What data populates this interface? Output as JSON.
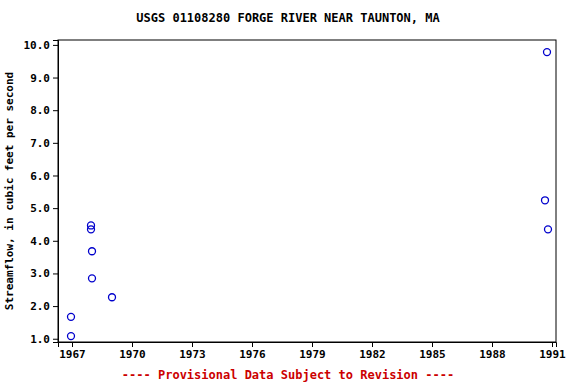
{
  "chart_data": {
    "type": "scatter",
    "title": "USGS 01108280 FORGE RIVER NEAR TAUNTON, MA",
    "subtitle": "---- Provisional Data Subject to Revision ----",
    "y_label": "Streamflow, in cubic feet per second",
    "x": [
      1966.95,
      1966.95,
      1967.95,
      1967.95,
      1968.0,
      1968.0,
      1969.0,
      1990.75,
      1990.65,
      1990.8
    ],
    "series": [
      {
        "name": "Streamflow",
        "color": "#0000cc",
        "marker": "open-circle",
        "values": [
          1.67,
          1.08,
          4.47,
          4.35,
          3.68,
          2.85,
          2.27,
          9.78,
          5.24,
          4.35
        ]
      }
    ],
    "xlim": [
      1966.3,
      1991.2
    ],
    "xticks": [
      1967,
      1970,
      1973,
      1976,
      1979,
      1982,
      1985,
      1988,
      1991
    ],
    "ylim": [
      0.9,
      10.15
    ],
    "yticks": [
      {
        "value": 1,
        "label": "1.0"
      },
      {
        "value": 2,
        "label": "2.0"
      },
      {
        "value": 3,
        "label": "3.0"
      },
      {
        "value": 4,
        "label": "4.0"
      },
      {
        "value": 5,
        "label": "5.0"
      },
      {
        "value": 6,
        "label": "6.0"
      },
      {
        "value": 7,
        "label": "7.0"
      },
      {
        "value": 8,
        "label": "8.0"
      },
      {
        "value": 9,
        "label": "9.0"
      },
      {
        "value": 10,
        "label": "10.0"
      }
    ],
    "grid": false
  }
}
